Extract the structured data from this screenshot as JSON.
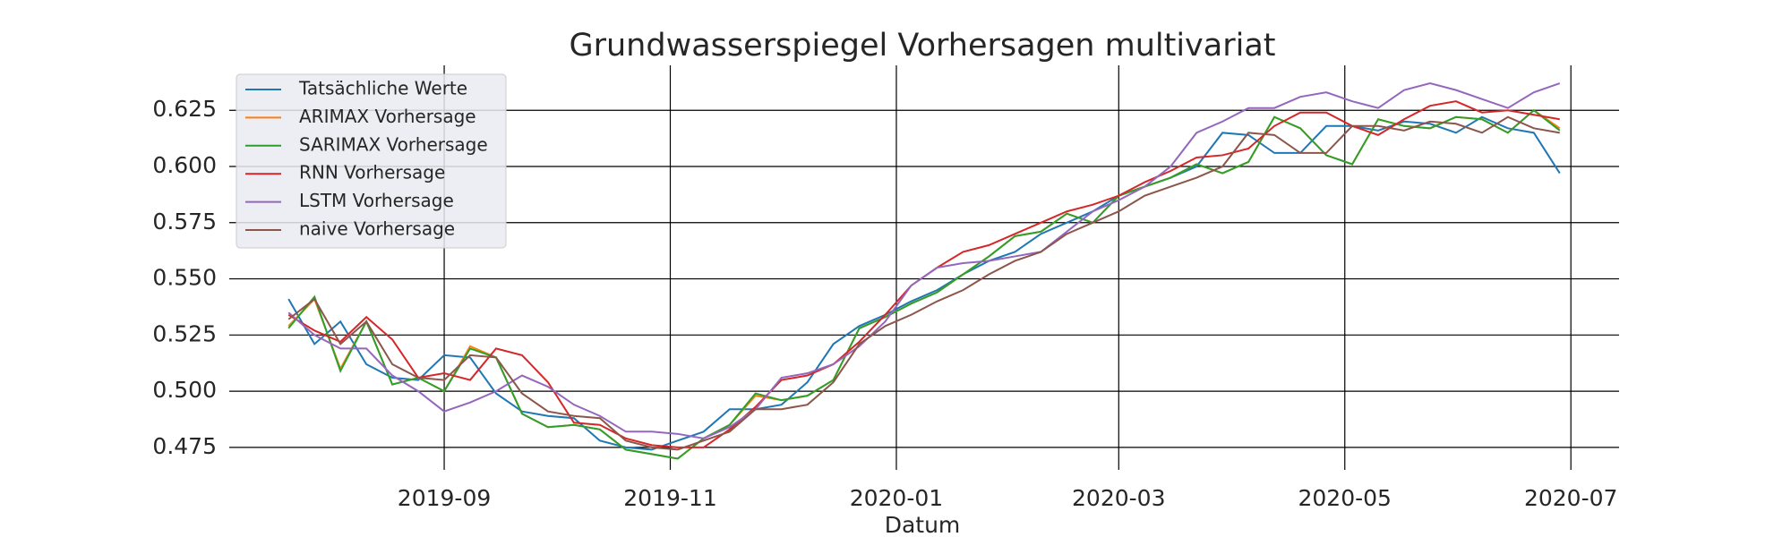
{
  "chart_data": {
    "type": "line",
    "title": "Grundwasserspiegel Vorhersagen multivariat",
    "x_label": "Datum",
    "x": [
      "2019-07-21",
      "2019-07-28",
      "2019-08-04",
      "2019-08-11",
      "2019-08-18",
      "2019-08-25",
      "2019-09-01",
      "2019-09-08",
      "2019-09-15",
      "2019-09-22",
      "2019-09-29",
      "2019-10-06",
      "2019-10-13",
      "2019-10-20",
      "2019-10-27",
      "2019-11-03",
      "2019-11-10",
      "2019-11-17",
      "2019-11-24",
      "2019-12-01",
      "2019-12-08",
      "2019-12-15",
      "2019-12-22",
      "2019-12-29",
      "2020-01-05",
      "2020-01-12",
      "2020-01-19",
      "2020-01-26",
      "2020-02-02",
      "2020-02-09",
      "2020-02-16",
      "2020-02-23",
      "2020-03-01",
      "2020-03-08",
      "2020-03-15",
      "2020-03-22",
      "2020-03-29",
      "2020-04-05",
      "2020-04-12",
      "2020-04-19",
      "2020-04-26",
      "2020-05-03",
      "2020-05-10",
      "2020-05-17",
      "2020-05-24",
      "2020-05-31",
      "2020-06-07",
      "2020-06-14",
      "2020-06-21",
      "2020-06-28"
    ],
    "series": [
      {
        "name": "Tatsächliche Werte",
        "color": "#1f77b4",
        "values": [
          0.541,
          0.521,
          0.531,
          0.512,
          0.506,
          0.505,
          0.516,
          0.515,
          0.499,
          0.491,
          0.489,
          0.488,
          0.478,
          0.475,
          0.474,
          0.478,
          0.482,
          0.492,
          0.492,
          0.494,
          0.504,
          0.521,
          0.529,
          0.534,
          0.54,
          0.545,
          0.552,
          0.558,
          0.562,
          0.57,
          0.575,
          0.58,
          0.587,
          0.591,
          0.595,
          0.6,
          0.615,
          0.614,
          0.606,
          0.606,
          0.618,
          0.618,
          0.616,
          0.62,
          0.619,
          0.615,
          0.622,
          0.617,
          0.615,
          0.597
        ]
      },
      {
        "name": "ARIMAX Vorhersage",
        "color": "#ff7f0e",
        "values": [
          0.529,
          0.541,
          0.51,
          0.531,
          0.503,
          0.506,
          0.5,
          0.52,
          0.515,
          0.49,
          0.484,
          0.485,
          0.483,
          0.474,
          0.472,
          0.47,
          0.479,
          0.485,
          0.498,
          0.496,
          0.498,
          0.505,
          0.528,
          0.533,
          0.539,
          0.544,
          0.552,
          0.56,
          0.569,
          0.571,
          0.579,
          0.575,
          0.587,
          0.591,
          0.595,
          0.601,
          0.597,
          0.602,
          0.622,
          0.617,
          0.605,
          0.601,
          0.621,
          0.618,
          0.617,
          0.622,
          0.621,
          0.615,
          0.625,
          0.617
        ]
      },
      {
        "name": "SARIMAX Vorhersage",
        "color": "#2ca02c",
        "values": [
          0.528,
          0.542,
          0.509,
          0.531,
          0.503,
          0.506,
          0.5,
          0.519,
          0.515,
          0.49,
          0.484,
          0.485,
          0.483,
          0.474,
          0.472,
          0.47,
          0.479,
          0.485,
          0.499,
          0.496,
          0.498,
          0.505,
          0.528,
          0.533,
          0.539,
          0.544,
          0.552,
          0.56,
          0.569,
          0.571,
          0.579,
          0.575,
          0.587,
          0.591,
          0.595,
          0.601,
          0.597,
          0.602,
          0.622,
          0.617,
          0.605,
          0.601,
          0.621,
          0.618,
          0.617,
          0.622,
          0.621,
          0.615,
          0.625,
          0.616
        ]
      },
      {
        "name": "RNN Vorhersage",
        "color": "#d62728",
        "values": [
          0.534,
          0.527,
          0.522,
          0.533,
          0.523,
          0.506,
          0.508,
          0.505,
          0.519,
          0.516,
          0.504,
          0.486,
          0.485,
          0.479,
          0.476,
          0.475,
          0.475,
          0.483,
          0.493,
          0.505,
          0.507,
          0.512,
          0.522,
          0.534,
          0.547,
          0.555,
          0.562,
          0.565,
          0.57,
          0.575,
          0.58,
          0.583,
          0.587,
          0.593,
          0.598,
          0.604,
          0.605,
          0.608,
          0.618,
          0.624,
          0.624,
          0.618,
          0.614,
          0.621,
          0.627,
          0.629,
          0.624,
          0.625,
          0.623,
          0.621
        ]
      },
      {
        "name": "LSTM Vorhersage",
        "color": "#9467bd",
        "values": [
          0.535,
          0.525,
          0.519,
          0.519,
          0.507,
          0.5,
          0.491,
          0.495,
          0.5,
          0.507,
          0.502,
          0.494,
          0.489,
          0.482,
          0.482,
          0.481,
          0.479,
          0.484,
          0.492,
          0.506,
          0.508,
          0.512,
          0.52,
          0.531,
          0.547,
          0.555,
          0.557,
          0.558,
          0.56,
          0.562,
          0.571,
          0.58,
          0.585,
          0.591,
          0.6,
          0.615,
          0.62,
          0.626,
          0.626,
          0.631,
          0.633,
          0.629,
          0.626,
          0.634,
          0.637,
          0.634,
          0.63,
          0.626,
          0.633,
          0.637
        ]
      },
      {
        "name": "naive Vorhersage",
        "color": "#8c564b",
        "values": [
          0.532,
          0.541,
          0.521,
          0.531,
          0.512,
          0.506,
          0.505,
          0.516,
          0.515,
          0.499,
          0.491,
          0.489,
          0.488,
          0.478,
          0.475,
          0.474,
          0.478,
          0.482,
          0.492,
          0.492,
          0.494,
          0.504,
          0.521,
          0.529,
          0.534,
          0.54,
          0.545,
          0.552,
          0.558,
          0.562,
          0.57,
          0.575,
          0.58,
          0.587,
          0.591,
          0.595,
          0.6,
          0.615,
          0.614,
          0.606,
          0.606,
          0.618,
          0.618,
          0.616,
          0.62,
          0.619,
          0.615,
          0.622,
          0.617,
          0.615
        ]
      }
    ],
    "xlim": [
      "2019-07-05",
      "2020-07-14"
    ],
    "xticks": [
      "2019-09",
      "2019-11",
      "2020-01",
      "2020-03",
      "2020-05",
      "2020-07"
    ],
    "ylim": [
      0.465,
      0.645
    ],
    "yticks": [
      {
        "value": 0.475,
        "label": "0.475"
      },
      {
        "value": 0.5,
        "label": "0.500"
      },
      {
        "value": 0.525,
        "label": "0.525"
      },
      {
        "value": 0.55,
        "label": "0.550"
      },
      {
        "value": 0.575,
        "label": "0.575"
      },
      {
        "value": 0.6,
        "label": "0.600"
      },
      {
        "value": 0.625,
        "label": "0.625"
      }
    ],
    "grid": true,
    "legend": "upper left"
  }
}
